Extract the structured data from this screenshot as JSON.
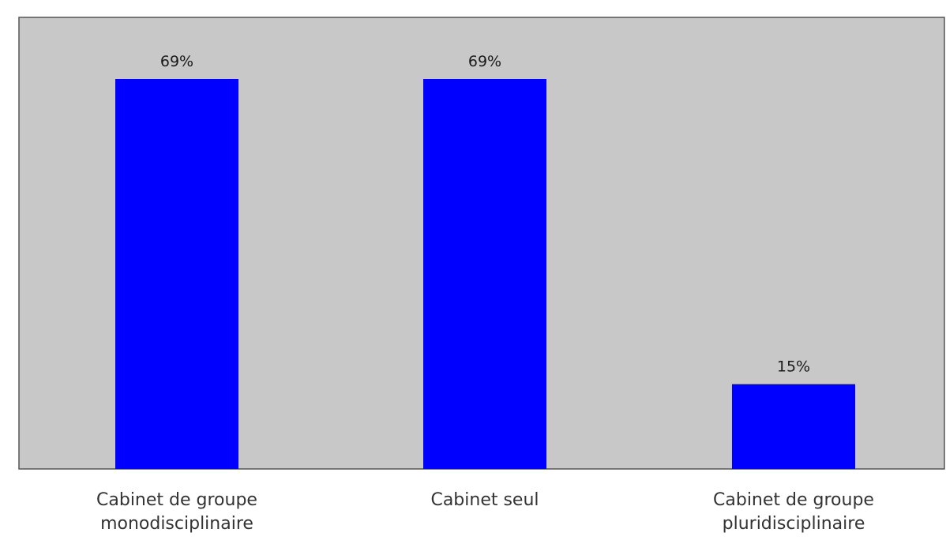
{
  "chart_data": {
    "type": "bar",
    "categories": [
      [
        "Cabinet de groupe",
        "monodisciplinaire"
      ],
      [
        "Cabinet seul"
      ],
      [
        "Cabinet de groupe",
        "pluridisciplinaire"
      ]
    ],
    "values": [
      69,
      69,
      15
    ],
    "value_labels": [
      "69%",
      "69%",
      "15%"
    ],
    "title": "",
    "xlabel": "",
    "ylabel": "",
    "ylim": [
      0,
      80
    ],
    "grid": false,
    "legend": "none"
  },
  "colors": {
    "bar": "#0000ff",
    "plot_background": "#c8c8c8",
    "plot_border": "#555555",
    "page_background": "#ffffff"
  }
}
